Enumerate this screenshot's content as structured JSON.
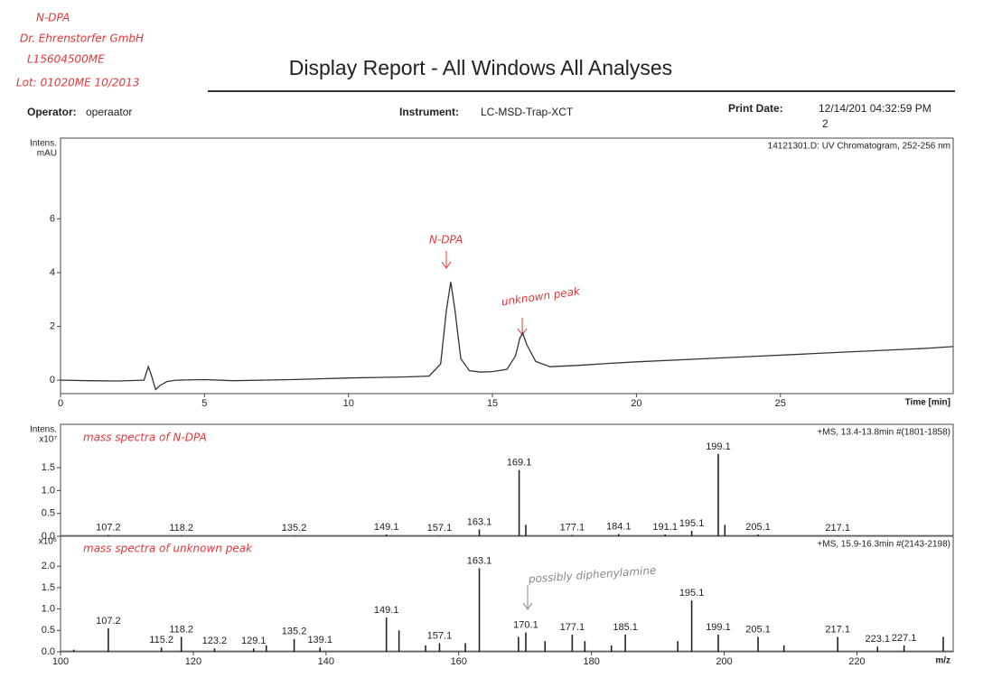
{
  "header": {
    "title": "Display Report - All Windows All Analyses",
    "operator_label": "Operator:",
    "operator": "operaator",
    "instrument_label": "Instrument:",
    "instrument": "LC-MSD-Trap-XCT",
    "print_date_label": "Print Date:",
    "print_date": "12/14/201 04:32:59 PM",
    "print_date_wrap": "2"
  },
  "handwritten": {
    "lines": [
      "N-DPA",
      "Dr. Ehrenstorfer GmbH",
      "L15604500ME",
      "Lot: 01020ME    10/2013"
    ]
  },
  "chart_data": [
    {
      "type": "line",
      "annotation": "14121301.D: UV Chromatogram, 252-256 nm",
      "y_label": [
        "Intens.",
        "mAU"
      ],
      "x_label": "Time [min]",
      "notes": [
        "N-DPA",
        "unknown peak"
      ],
      "color": "#333333",
      "x": [
        0,
        1,
        2,
        2.9,
        3.05,
        3.15,
        3.3,
        3.45,
        3.7,
        4,
        5,
        6,
        7,
        8,
        9,
        10,
        11,
        12,
        12.8,
        13.2,
        13.4,
        13.55,
        13.7,
        13.9,
        14.2,
        14.6,
        15,
        15.5,
        15.8,
        15.95,
        16.05,
        16.2,
        16.5,
        17,
        18,
        19,
        20,
        22,
        24,
        26,
        28,
        30,
        31
      ],
      "values": [
        0,
        -0.02,
        -0.03,
        0,
        0.5,
        0.2,
        -0.35,
        -0.2,
        -0.05,
        0,
        0.02,
        -0.02,
        0,
        0.02,
        0.05,
        0.08,
        0.1,
        0.12,
        0.15,
        0.6,
        2.6,
        3.65,
        2.6,
        0.8,
        0.35,
        0.3,
        0.32,
        0.4,
        0.9,
        1.55,
        1.75,
        1.3,
        0.7,
        0.5,
        0.55,
        0.62,
        0.68,
        0.78,
        0.88,
        0.98,
        1.08,
        1.18,
        1.25
      ],
      "xlim": [
        0,
        31
      ],
      "ylim": [
        -0.5,
        9
      ],
      "xticks": [
        0,
        5,
        10,
        15,
        20,
        25
      ],
      "yticks": [
        0,
        2,
        4,
        6
      ]
    },
    {
      "type": "stick",
      "annotation": "+MS, 13.4-13.8min #(1801-1858)",
      "y_label": [
        "Intens.",
        "x10⁷"
      ],
      "notes": [
        "mass spectra of N-DPA"
      ],
      "color": "#222222",
      "x": [
        107.2,
        118.2,
        135.2,
        149.1,
        157.1,
        163.1,
        169.1,
        170.1,
        177.1,
        184.1,
        191.1,
        195.1,
        199.1,
        200.1,
        205.1,
        217.1
      ],
      "values": [
        0.03,
        0.02,
        0.02,
        0.04,
        0.02,
        0.15,
        1.45,
        0.25,
        0.03,
        0.05,
        0.04,
        0.12,
        1.8,
        0.25,
        0.04,
        0.02
      ],
      "peak_labels": [
        "107.2",
        "118.2",
        "135.2",
        "149.1",
        "157.1",
        "163.1",
        "169.1",
        null,
        "177.1",
        "184.1",
        "191.1",
        "195.1",
        "199.1",
        null,
        "205.1",
        "217.1"
      ],
      "xlim": [
        100,
        234.5
      ],
      "ylim": [
        0,
        2.45
      ],
      "yticks": [
        {
          "value": 0,
          "label": "0.0"
        },
        0.5,
        {
          "value": 1,
          "label": "1.0"
        },
        1.5
      ]
    },
    {
      "type": "stick",
      "annotation": "+MS, 15.9-16.3min #(2143-2198)",
      "y_label": [
        "x10⁶"
      ],
      "x_label": "m/z",
      "notes": [
        "mass spectra of unknown peak",
        "possibly diphenylamine"
      ],
      "color": "#222222",
      "x": [
        102,
        107.2,
        115.2,
        118.2,
        123.2,
        129.1,
        131,
        135.2,
        139.1,
        149.1,
        151,
        155,
        157.1,
        161,
        163.1,
        169,
        170.1,
        173,
        177.1,
        179,
        183,
        185.1,
        193,
        195.1,
        199.1,
        205.1,
        209,
        217.1,
        223.1,
        227.1,
        233
      ],
      "values": [
        0.05,
        0.55,
        0.1,
        0.35,
        0.08,
        0.08,
        0.15,
        0.3,
        0.1,
        0.8,
        0.5,
        0.15,
        0.2,
        0.2,
        1.95,
        0.35,
        0.45,
        0.25,
        0.4,
        0.25,
        0.15,
        0.4,
        0.25,
        1.2,
        0.4,
        0.35,
        0.15,
        0.35,
        0.12,
        0.15,
        0.35
      ],
      "peak_labels": [
        null,
        "107.2",
        "115.2",
        "118.2",
        "123.2",
        "129.1",
        null,
        "135.2",
        "139.1",
        "149.1",
        null,
        null,
        "157.1",
        null,
        "163.1",
        null,
        "170.1",
        null,
        "177.1",
        null,
        null,
        "185.1",
        null,
        "195.1",
        "199.1",
        "205.1",
        null,
        "217.1",
        "223.1",
        "227.1",
        null
      ],
      "xlim": [
        100,
        234.5
      ],
      "ylim": [
        0,
        2.7
      ],
      "xticks": [
        100,
        120,
        140,
        160,
        180,
        200,
        220
      ],
      "yticks": [
        {
          "value": 0,
          "label": "0.0"
        },
        0.5,
        {
          "value": 1,
          "label": "1.0"
        },
        1.5,
        {
          "value": 2,
          "label": "2.0"
        }
      ]
    }
  ]
}
